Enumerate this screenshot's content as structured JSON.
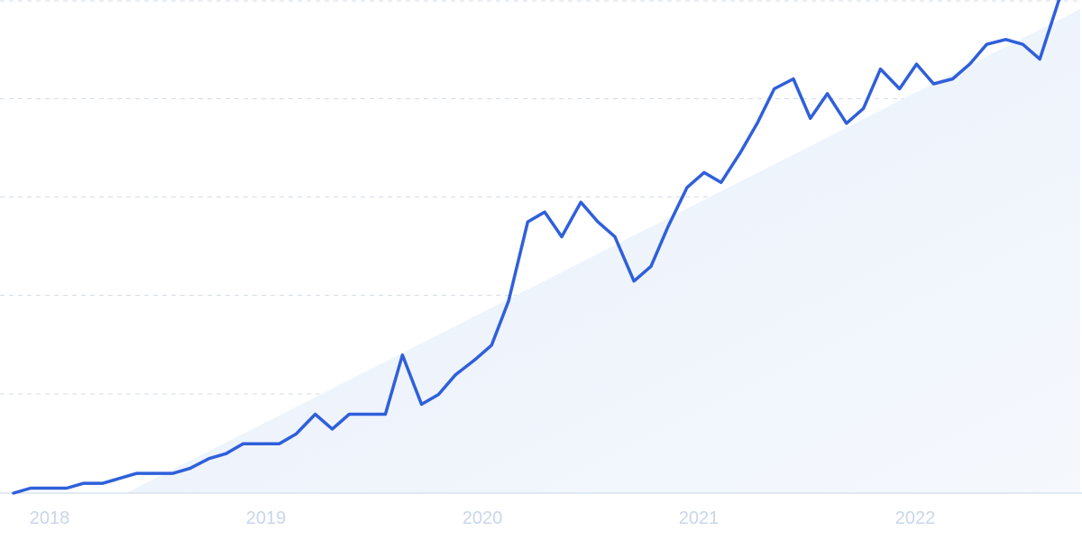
{
  "chart_data": {
    "type": "line",
    "x_ticks": [
      "2018",
      "2019",
      "2020",
      "2021",
      "2022"
    ],
    "xlim": [
      2017.93,
      2022.95
    ],
    "ylim": [
      0,
      100
    ],
    "grid": true,
    "trend_shading": true,
    "colors": {
      "line": "#2f5fdb",
      "grid": "#d6dce6",
      "baseline": "#d9e2ef",
      "tick": "#c9d6ea",
      "fill_light": "#e8f0fc",
      "fill_faint": "#f5f8fd"
    },
    "series": [
      {
        "x": [
          2017.93,
          2018.01,
          2018.1,
          2018.18,
          2018.26,
          2018.35,
          2018.43,
          2018.51,
          2018.6,
          2018.68,
          2018.76,
          2018.85,
          2018.93,
          2019.01,
          2019.1,
          2019.18,
          2019.26,
          2019.35,
          2019.43,
          2019.51,
          2019.6,
          2019.68,
          2019.76,
          2019.85,
          2019.93,
          2020.01,
          2020.1,
          2020.18,
          2020.26,
          2020.35,
          2020.43,
          2020.51,
          2020.6,
          2020.68,
          2020.76,
          2020.85,
          2020.93,
          2021.01,
          2021.1,
          2021.18,
          2021.26,
          2021.35,
          2021.43,
          2021.51,
          2021.6,
          2021.68,
          2021.76,
          2021.85,
          2021.93,
          2022.01,
          2022.1,
          2022.18,
          2022.26,
          2022.35,
          2022.43,
          2022.51,
          2022.6,
          2022.68,
          2022.76,
          2022.85,
          2022.93
        ],
        "values": [
          0,
          1,
          1,
          1,
          2,
          2,
          3,
          4,
          4,
          4,
          5,
          7,
          8,
          10,
          10,
          10,
          12,
          16,
          13,
          16,
          16,
          16,
          28,
          18,
          20,
          24,
          27,
          30,
          39,
          55,
          57,
          52,
          59,
          55,
          52,
          43,
          46,
          54,
          62,
          65,
          63,
          69,
          75,
          82,
          84,
          76,
          81,
          75,
          78,
          86,
          82,
          87,
          83,
          84,
          87,
          91,
          92,
          91,
          88,
          100,
          115
        ]
      }
    ]
  }
}
